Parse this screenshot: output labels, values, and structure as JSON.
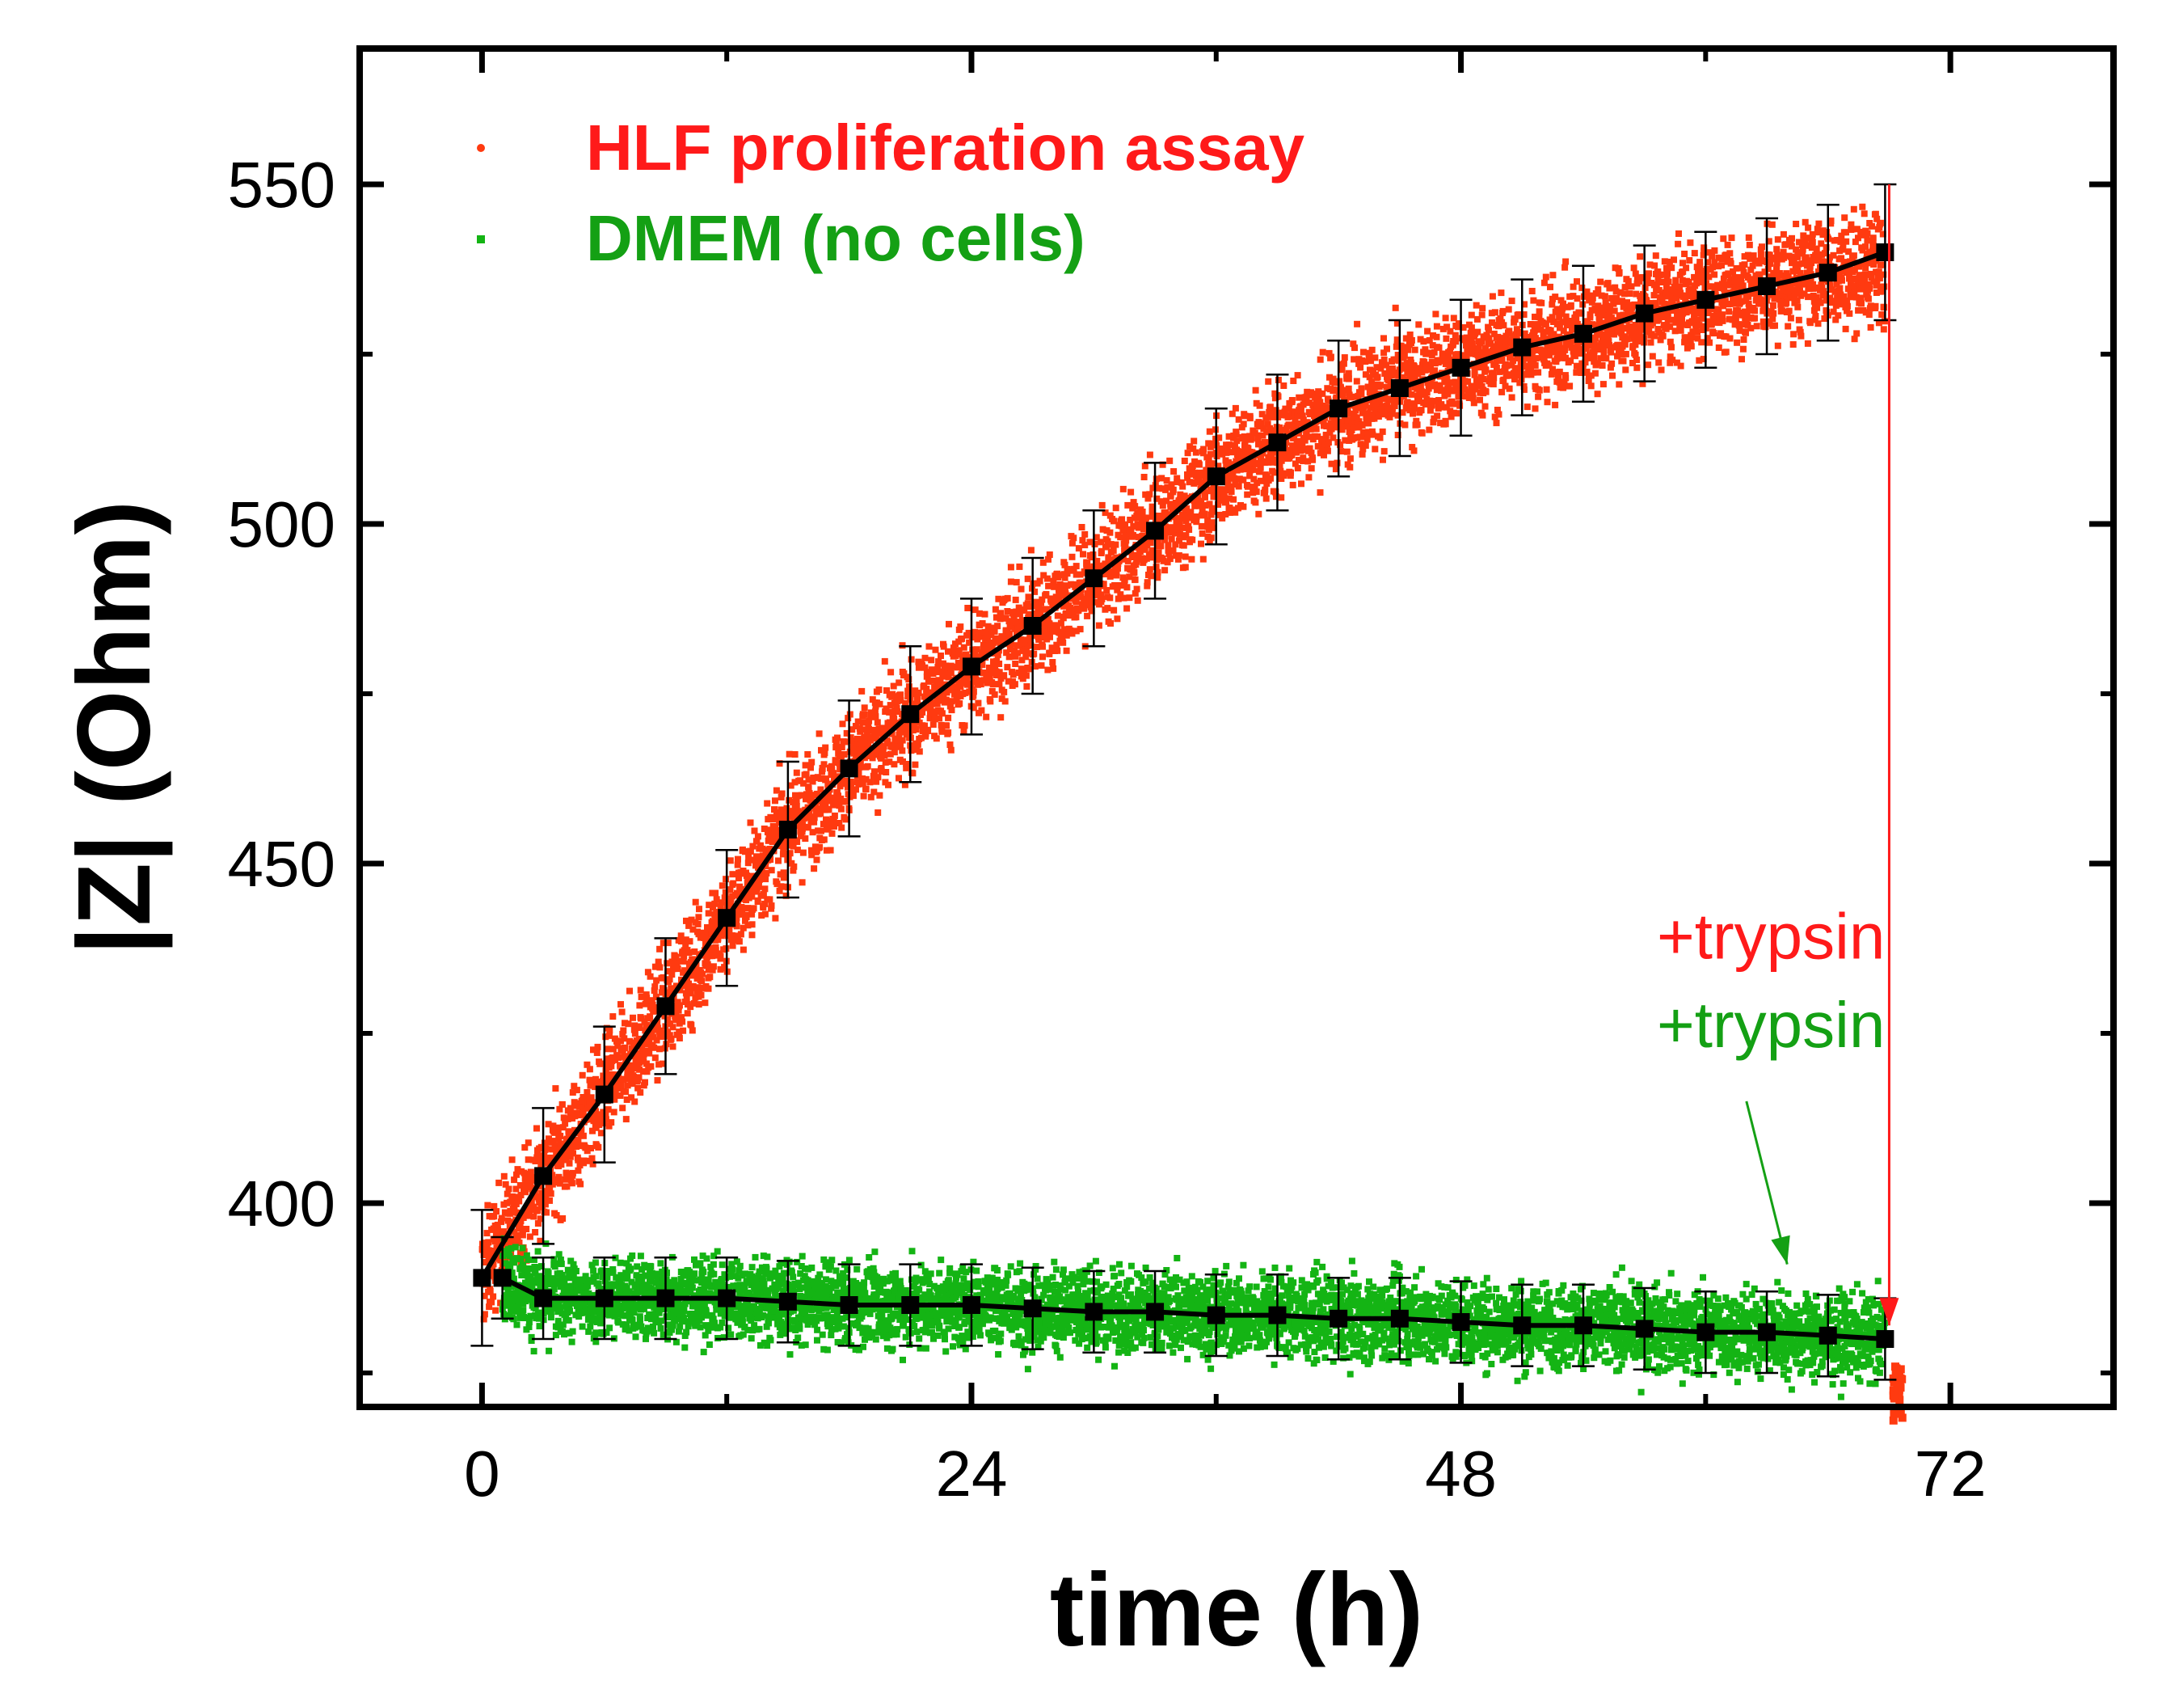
{
  "chart_data": {
    "type": "scatter",
    "xlabel": "time (h)",
    "ylabel": "|Z| (Ohm)",
    "xlim": [
      -6,
      80
    ],
    "ylim": [
      370,
      570
    ],
    "xticks": [
      0,
      24,
      48,
      72
    ],
    "xticks_minor": [
      12,
      36,
      60
    ],
    "yticks": [
      400,
      450,
      500,
      550
    ],
    "yticks_minor": [
      375,
      425,
      475,
      525
    ],
    "grid": false,
    "legend_position": "top-left",
    "colors": {
      "hlf": "#ff3a10",
      "dmem": "#14b414",
      "fit": "#000000",
      "annot_red": "#ff1a1a",
      "annot_green": "#14a014"
    },
    "series": [
      {
        "name": "HLF proliferation assay",
        "color": "#ff3a10",
        "scatter_spread": 4,
        "x": [
          0,
          1,
          3,
          6,
          9,
          12,
          15,
          18,
          21,
          24,
          27,
          30,
          33,
          36,
          39,
          42,
          45,
          48,
          51,
          54,
          57,
          60,
          63,
          66,
          68.8
        ],
        "y": [
          389,
          395,
          404,
          416,
          429,
          442,
          455,
          464,
          472,
          479,
          485,
          492,
          499,
          507,
          512,
          517,
          520,
          523,
          526,
          528,
          531,
          533,
          535,
          537,
          538
        ],
        "fit_x": [
          0,
          3,
          6,
          9,
          12,
          15,
          18,
          21,
          24,
          27,
          30,
          33,
          36,
          39,
          42,
          45,
          48,
          51,
          54,
          57,
          60,
          63,
          66,
          68.8
        ],
        "fit_y": [
          389,
          404,
          416,
          429,
          442,
          455,
          464,
          472,
          479,
          485,
          492,
          499,
          507,
          512,
          517,
          520,
          523,
          526,
          528,
          531,
          533,
          535,
          537,
          540
        ],
        "error": 10
      },
      {
        "name": "DMEM (no cells)",
        "color": "#14b414",
        "scatter_spread": 3,
        "x": [
          1,
          3,
          6,
          9,
          12,
          15,
          18,
          21,
          24,
          27,
          30,
          33,
          36,
          39,
          42,
          45,
          48,
          51,
          54,
          57,
          60,
          63,
          66,
          68.8
        ],
        "y": [
          389,
          386,
          386,
          386,
          386,
          385.5,
          385,
          385,
          385,
          384.5,
          384,
          384,
          383.5,
          383.5,
          383,
          383,
          382.5,
          382,
          382,
          381.5,
          381,
          381,
          380.5,
          380
        ],
        "fit_x": [
          1,
          3,
          6,
          9,
          12,
          15,
          18,
          21,
          24,
          27,
          30,
          33,
          36,
          39,
          42,
          45,
          48,
          51,
          54,
          57,
          60,
          63,
          66,
          68.8
        ],
        "fit_y": [
          389,
          386,
          386,
          386,
          386,
          385.5,
          385,
          385,
          385,
          384.5,
          384,
          384,
          383.5,
          383.5,
          383,
          383,
          382.5,
          382,
          382,
          381.5,
          381,
          381,
          380.5,
          380
        ],
        "error": 6
      }
    ],
    "annotations": [
      {
        "text": "+trypsin",
        "color": "#ff1a1a",
        "label_x": 68.8,
        "label_y": 436,
        "arrow_from": [
          69,
          550
        ],
        "arrow_to": [
          69,
          382
        ]
      },
      {
        "text": "+trypsin",
        "color": "#14a014",
        "label_x": 68.8,
        "label_y": 423,
        "arrow_from": [
          62,
          415
        ],
        "arrow_to": [
          64,
          391
        ]
      }
    ]
  }
}
